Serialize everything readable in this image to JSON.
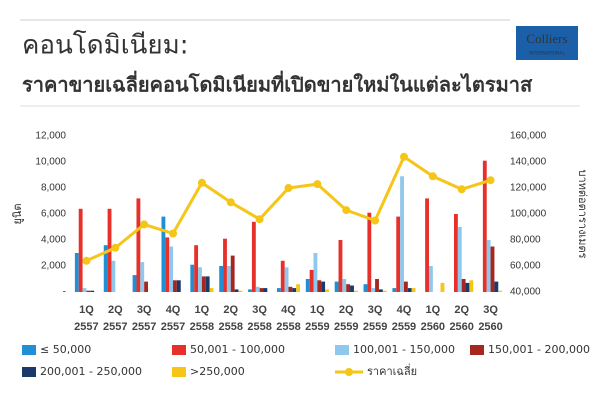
{
  "logo": {
    "name": "Colliers",
    "tagline": "INTERNATIONAL"
  },
  "chart_data": {
    "type": "bar",
    "title": "คอนโดมิเนียม:",
    "subtitle": "ราคาขายเฉลี่ยคอนโดมิเนียมที่เปิดขายใหม่ในแต่ละไตรมาส",
    "ylabel": "ยูนิต",
    "y2label": "บาทต่อตารางเมตร",
    "categories": [
      "1Q 2557",
      "2Q 2557",
      "3Q 2557",
      "4Q 2557",
      "1Q 2558",
      "2Q 2558",
      "3Q 2558",
      "4Q 2558",
      "1Q 2559",
      "2Q 2559",
      "3Q 2559",
      "4Q 2559",
      "1Q 2560",
      "2Q 2560",
      "3Q 2560"
    ],
    "series": [
      {
        "name": "≤ 50,000",
        "color": "#1f8fd6",
        "values": [
          3000,
          3600,
          1300,
          5800,
          2100,
          2000,
          200,
          300,
          1000,
          800,
          600,
          300,
          0,
          0,
          0
        ]
      },
      {
        "name": "50,001 - 100,000",
        "color": "#e8302a",
        "values": [
          6400,
          6400,
          7200,
          4200,
          3600,
          4100,
          5400,
          2400,
          1700,
          4000,
          6100,
          5800,
          7200,
          6000,
          10100
        ]
      },
      {
        "name": "100,001 - 150,000",
        "color": "#8fc8ec",
        "values": [
          300,
          2400,
          2300,
          3500,
          1900,
          2000,
          400,
          1900,
          3000,
          1000,
          300,
          8900,
          2000,
          5000,
          4000
        ]
      },
      {
        "name": "150,001 - 200,000",
        "color": "#a5271f",
        "values": [
          100,
          0,
          800,
          900,
          1200,
          2800,
          300,
          400,
          900,
          600,
          1000,
          800,
          0,
          1000,
          3500
        ]
      },
      {
        "name": "200,001 - 250,000",
        "color": "#1a3a6b",
        "values": [
          100,
          0,
          0,
          900,
          1200,
          200,
          300,
          300,
          800,
          500,
          200,
          300,
          0,
          700,
          800
        ]
      },
      {
        "name": ">250,000",
        "color": "#f5c518",
        "values": [
          0,
          0,
          0,
          0,
          300,
          100,
          0,
          600,
          200,
          100,
          100,
          300,
          700,
          900,
          100
        ]
      },
      {
        "name": "ราคาเฉลี่ย",
        "type": "line",
        "axis": "y2",
        "color": "#f5c518",
        "values": [
          64000,
          74000,
          92000,
          85000,
          124000,
          109000,
          96000,
          120000,
          123000,
          103000,
          95000,
          144000,
          129000,
          119000,
          126000
        ]
      }
    ],
    "ylim": [
      0,
      12000
    ],
    "yticks": [
      {
        "value": 0,
        "label": "-"
      },
      {
        "value": 2000,
        "label": "2,000"
      },
      {
        "value": 4000,
        "label": "4,000"
      },
      {
        "value": 6000,
        "label": "6,000"
      },
      {
        "value": 8000,
        "label": "8,000"
      },
      {
        "value": 10000,
        "label": "10,000"
      },
      {
        "value": 12000,
        "label": "12,000"
      }
    ],
    "y2lim": [
      40000,
      160000
    ],
    "y2ticks": [
      {
        "value": 40000,
        "label": "40,000"
      },
      {
        "value": 60000,
        "label": "60,000"
      },
      {
        "value": 80000,
        "label": "80,000"
      },
      {
        "value": 100000,
        "label": "100,000"
      },
      {
        "value": 120000,
        "label": "120,000"
      },
      {
        "value": 140000,
        "label": "140,000"
      },
      {
        "value": 160000,
        "label": "160,000"
      }
    ],
    "grid": false
  }
}
